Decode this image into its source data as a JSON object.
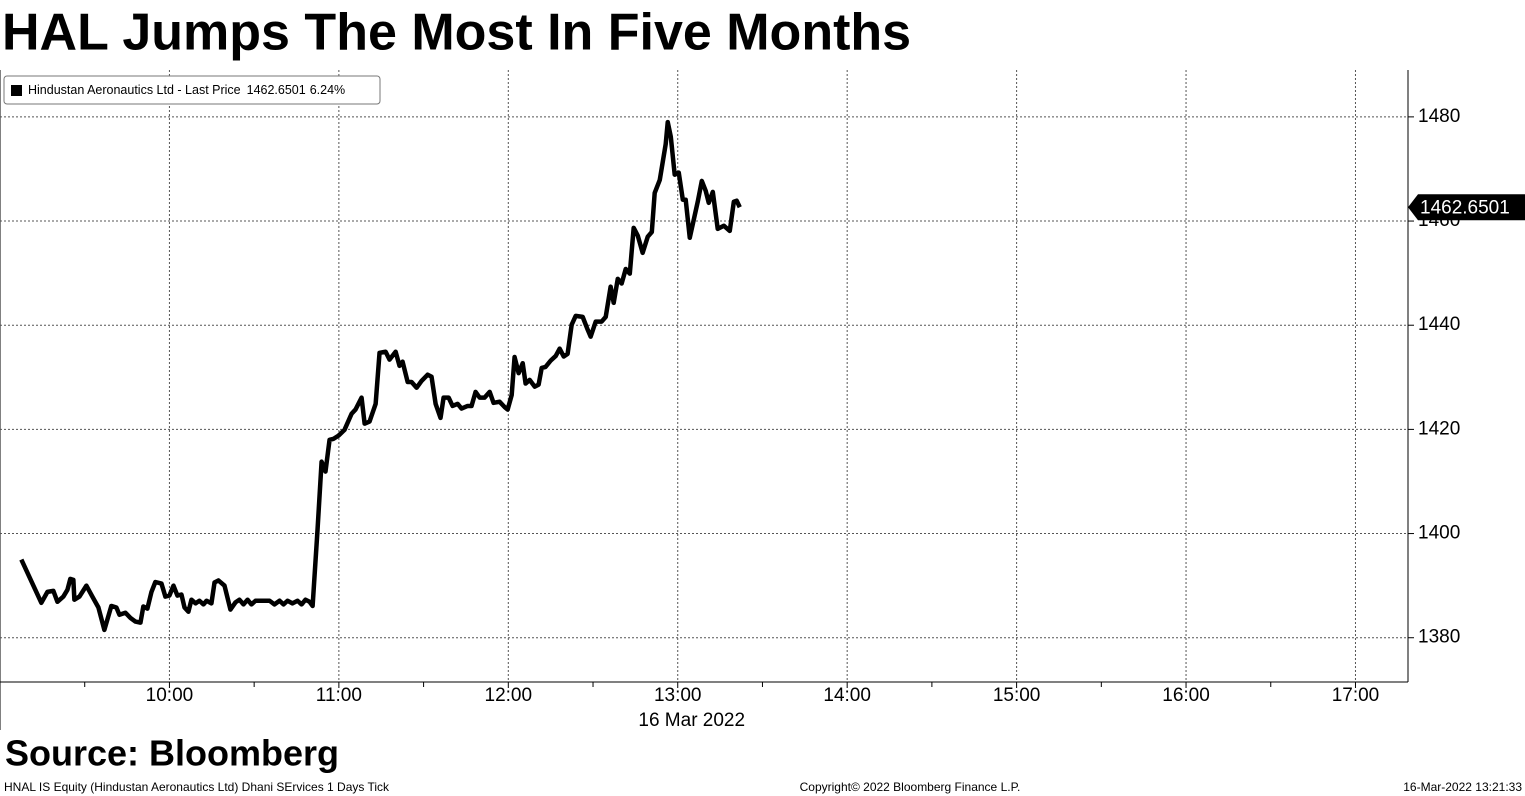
{
  "chart_data": {
    "type": "line",
    "title": "HAL Jumps The Most In Five Months",
    "xlabel": "16 Mar 2022",
    "source": "Source: Bloomberg",
    "footer_left": "HNAL IS Equity (Hindustan Aeronautics Ltd) Dhani SErvices 1 Days  Tick",
    "footer_center": "Copyright© 2022 Bloomberg Finance L.P.",
    "footer_right": "16-Mar-2022 13:21:33",
    "change": {
      "value": 6.24,
      "label": "6.24%"
    },
    "grid": true,
    "xlim": [
      9,
      17.31
    ],
    "ylim": [
      1371.5,
      1489
    ],
    "xticks": [
      {
        "value": 10,
        "label": "10:00"
      },
      {
        "value": 11,
        "label": "11:00"
      },
      {
        "value": 12,
        "label": "12:00"
      },
      {
        "value": 13,
        "label": "13:00"
      },
      {
        "value": 14,
        "label": "14:00"
      },
      {
        "value": 15,
        "label": "15:00"
      },
      {
        "value": 16,
        "label": "16:00"
      },
      {
        "value": 17,
        "label": "17:00"
      }
    ],
    "yticks": [
      1380,
      1400,
      1420,
      1440,
      1460,
      1480
    ],
    "x": [
      9.126,
      9.244,
      9.28,
      9.315,
      9.339,
      9.374,
      9.398,
      9.415,
      9.433,
      9.439,
      9.469,
      9.51,
      9.545,
      9.581,
      9.616,
      9.657,
      9.687,
      9.705,
      9.74,
      9.77,
      9.799,
      9.829,
      9.846,
      9.87,
      9.894,
      9.917,
      9.953,
      9.976,
      10.0,
      10.024,
      10.047,
      10.071,
      10.089,
      10.112,
      10.13,
      10.154,
      10.177,
      10.201,
      10.219,
      10.248,
      10.266,
      10.289,
      10.325,
      10.36,
      10.39,
      10.413,
      10.437,
      10.461,
      10.484,
      10.508,
      10.543,
      10.591,
      10.62,
      10.65,
      10.673,
      10.697,
      10.726,
      10.756,
      10.78,
      10.803,
      10.827,
      10.845,
      10.874,
      10.898,
      10.921,
      10.945,
      10.969,
      10.998,
      11.033,
      11.075,
      11.098,
      11.134,
      11.152,
      11.181,
      11.217,
      11.24,
      11.276,
      11.299,
      11.335,
      11.358,
      11.376,
      11.406,
      11.429,
      11.459,
      11.488,
      11.524,
      11.547,
      11.571,
      11.6,
      11.618,
      11.648,
      11.671,
      11.701,
      11.724,
      11.76,
      11.783,
      11.807,
      11.831,
      11.86,
      11.89,
      11.913,
      11.949,
      11.978,
      11.996,
      12.02,
      12.037,
      12.061,
      12.085,
      12.102,
      12.126,
      12.156,
      12.179,
      12.197,
      12.22,
      12.25,
      12.28,
      12.303,
      12.327,
      12.35,
      12.374,
      12.398,
      12.439,
      12.469,
      12.486,
      12.516,
      12.551,
      12.575,
      12.604,
      12.622,
      12.646,
      12.669,
      12.693,
      12.717,
      12.74,
      12.764,
      12.793,
      12.823,
      12.847,
      12.864,
      12.894,
      12.929,
      12.941,
      12.959,
      12.982,
      13.006,
      13.03,
      13.047,
      13.071,
      13.118,
      13.142,
      13.165,
      13.183,
      13.207,
      13.236,
      13.272,
      13.307,
      13.331,
      13.348,
      13.366
    ],
    "series": [
      {
        "name": "Hindustan Aeronautics Ltd - Last Price",
        "color": "#000000",
        "values": [
          1395.0,
          1386.7,
          1388.8,
          1389.0,
          1386.9,
          1387.9,
          1389.2,
          1391.3,
          1391.1,
          1387.3,
          1387.9,
          1390.0,
          1387.9,
          1385.8,
          1381.5,
          1386.1,
          1385.8,
          1384.4,
          1384.8,
          1383.8,
          1383.1,
          1382.9,
          1386.0,
          1385.6,
          1388.8,
          1390.7,
          1390.4,
          1387.9,
          1388.1,
          1390.0,
          1388.1,
          1388.3,
          1385.8,
          1385.0,
          1387.3,
          1386.6,
          1387.1,
          1386.4,
          1387.1,
          1386.6,
          1390.6,
          1391.0,
          1390.0,
          1385.4,
          1386.8,
          1387.3,
          1386.4,
          1387.3,
          1386.4,
          1387.1,
          1387.1,
          1387.1,
          1386.4,
          1387.1,
          1386.4,
          1387.1,
          1386.6,
          1387.1,
          1386.4,
          1387.3,
          1386.9,
          1386.1,
          1400.7,
          1413.8,
          1411.9,
          1418.0,
          1418.2,
          1418.8,
          1419.9,
          1423.0,
          1423.8,
          1426.1,
          1421.1,
          1421.5,
          1424.9,
          1434.7,
          1434.9,
          1433.4,
          1434.9,
          1432.2,
          1433.0,
          1429.1,
          1429.1,
          1428.0,
          1429.3,
          1430.5,
          1430.1,
          1424.9,
          1422.2,
          1426.1,
          1426.1,
          1424.5,
          1424.9,
          1424.0,
          1424.5,
          1424.5,
          1427.2,
          1426.1,
          1426.1,
          1427.2,
          1425.1,
          1425.3,
          1424.3,
          1423.8,
          1426.6,
          1433.9,
          1430.8,
          1432.7,
          1428.8,
          1429.5,
          1428.2,
          1428.6,
          1431.8,
          1432.0,
          1433.2,
          1434.1,
          1435.5,
          1434.0,
          1434.5,
          1440.1,
          1441.8,
          1441.6,
          1439.1,
          1437.8,
          1440.7,
          1440.7,
          1441.6,
          1447.4,
          1444.3,
          1448.9,
          1448.0,
          1450.8,
          1449.9,
          1458.7,
          1457.2,
          1453.9,
          1457.0,
          1457.9,
          1465.4,
          1467.9,
          1474.8,
          1479.0,
          1476.2,
          1468.9,
          1469.3,
          1464.1,
          1464.1,
          1456.8,
          1463.7,
          1467.7,
          1465.8,
          1463.5,
          1465.6,
          1458.5,
          1459.1,
          1458.1,
          1463.7,
          1463.9,
          1462.6501
        ]
      }
    ]
  }
}
